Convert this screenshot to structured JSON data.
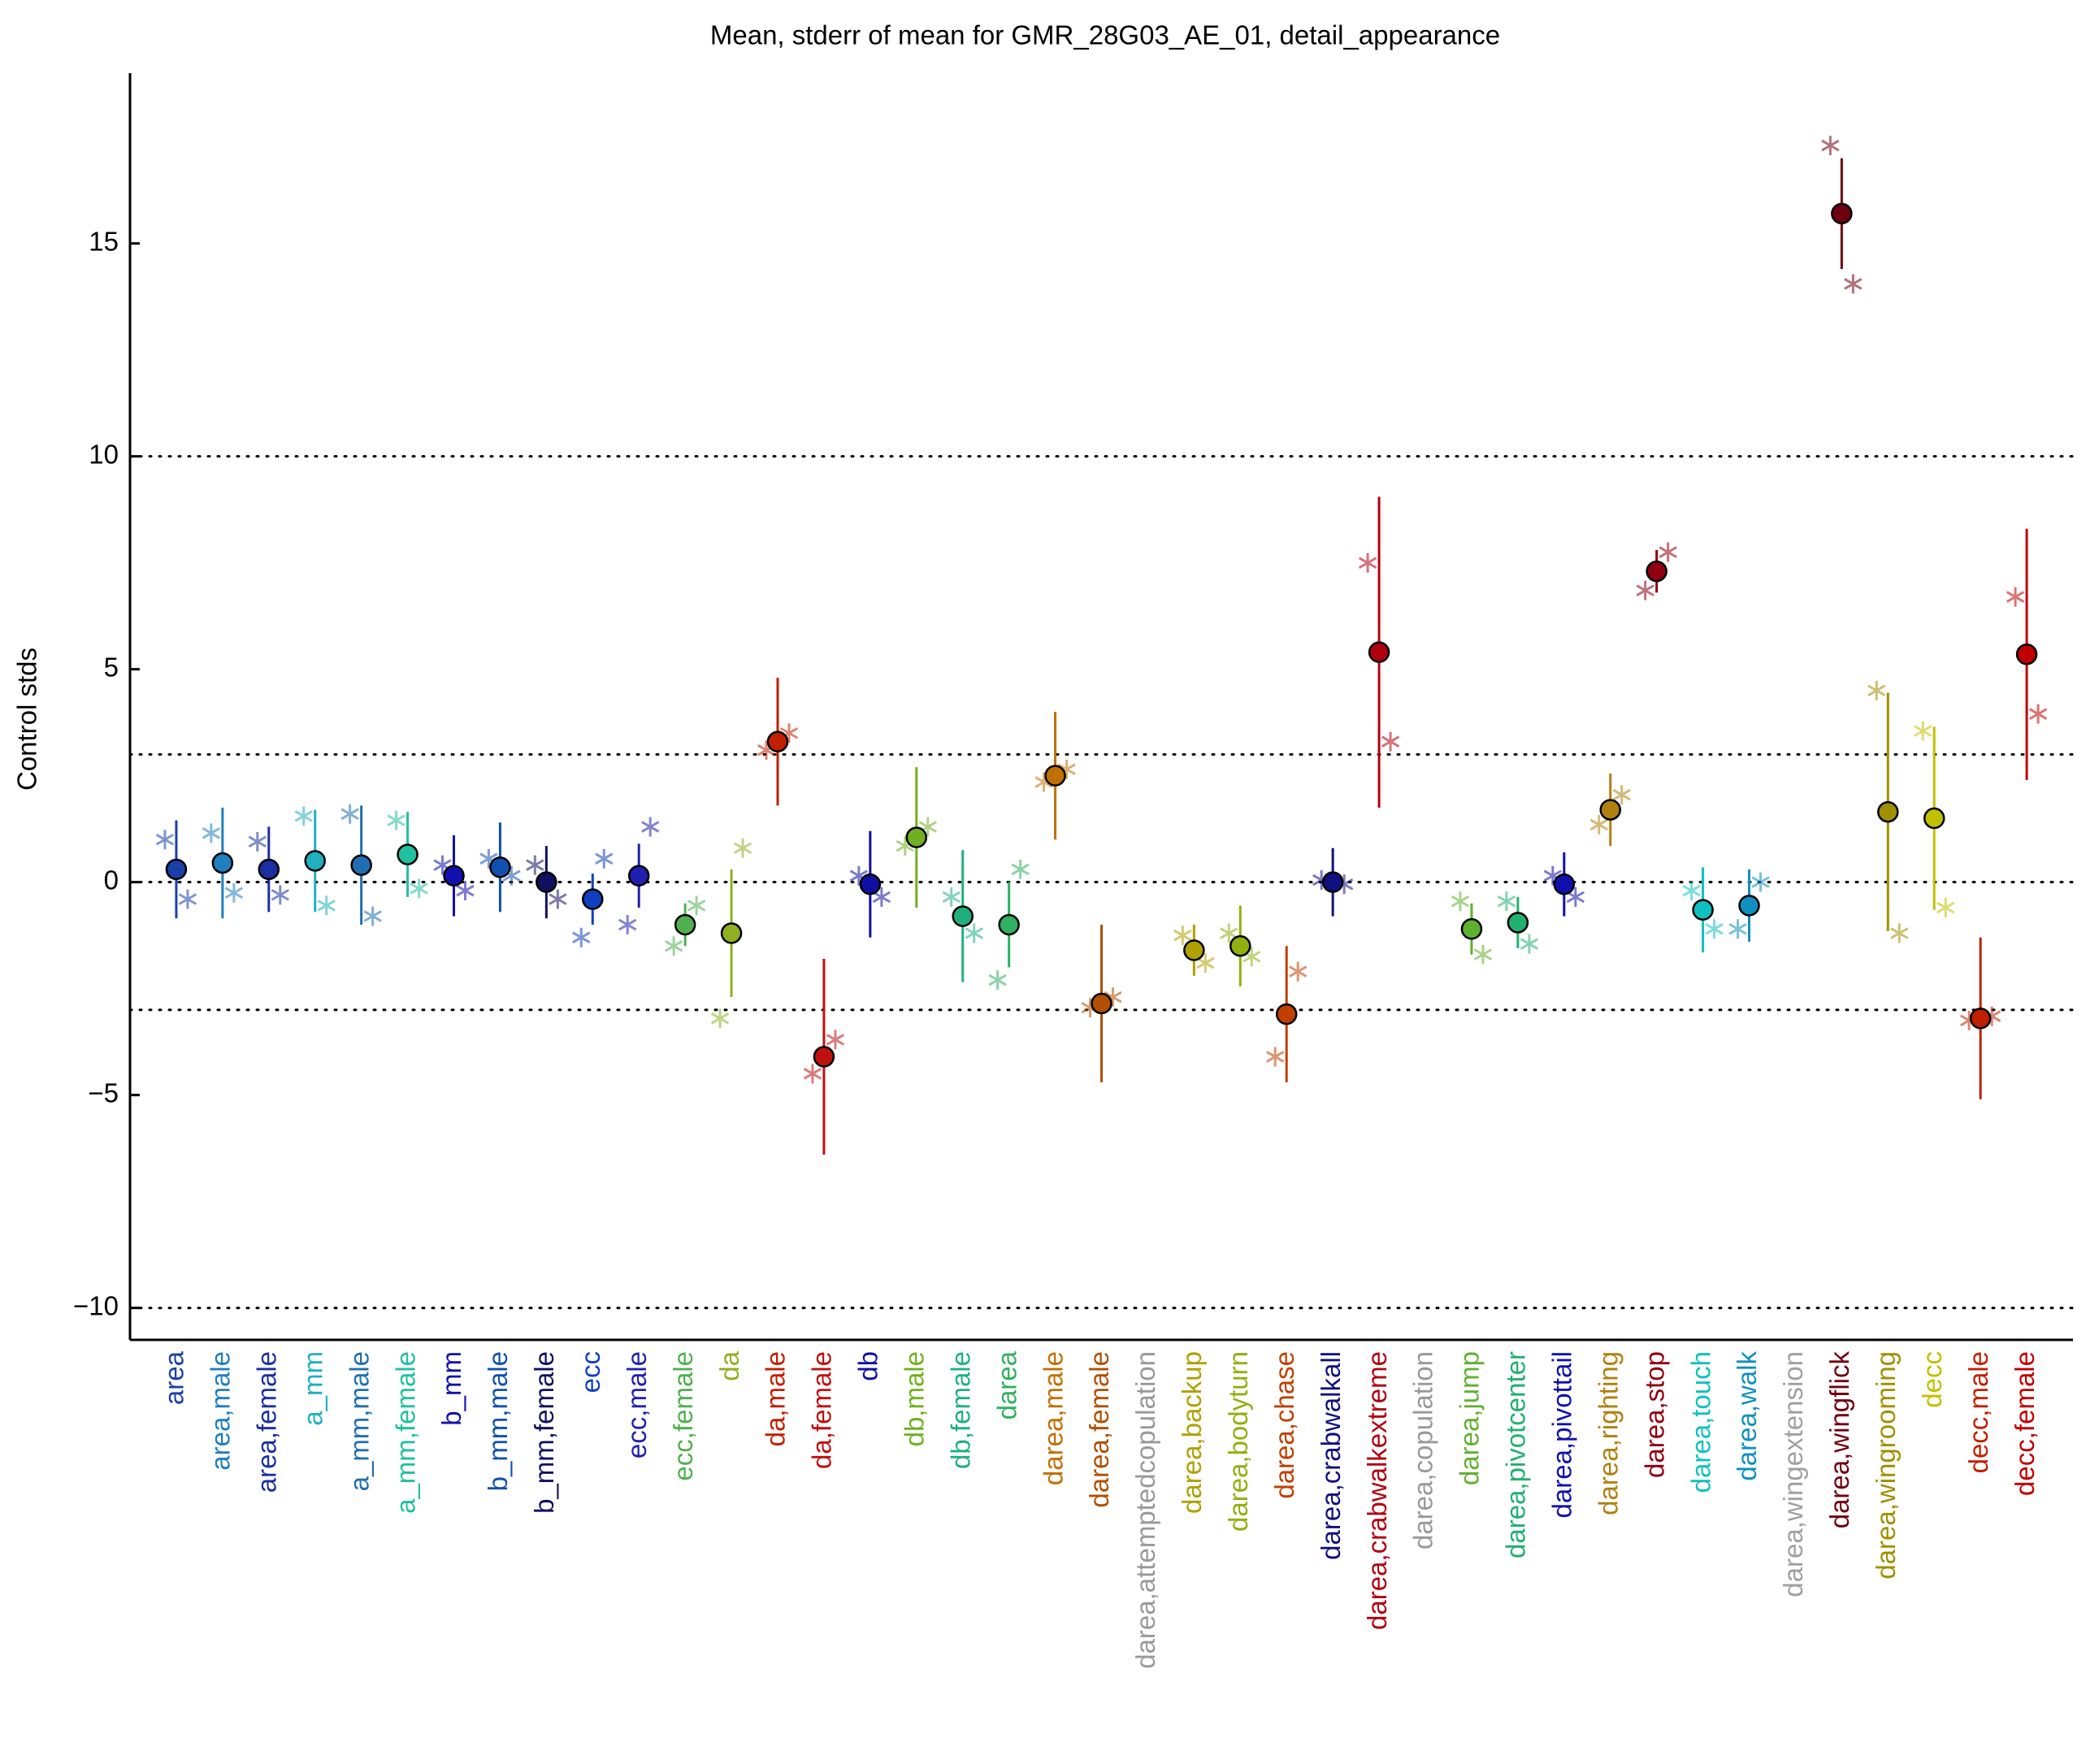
{
  "chart_data": {
    "type": "errorbar",
    "title": "Mean, stderr of mean for GMR_28G03_AE_01, detail_appearance",
    "ylabel": "Control stds",
    "categories": [
      "area",
      "area,male",
      "area,female",
      "a_mm",
      "a_mm,male",
      "a_mm,female",
      "b_mm",
      "b_mm,male",
      "b_mm,female",
      "ecc",
      "ecc,male",
      "ecc,female",
      "da",
      "da,male",
      "da,female",
      "db",
      "db,male",
      "db,female",
      "darea",
      "darea,male",
      "darea,female",
      "darea,attemptedcopulation",
      "darea,backup",
      "darea,bodyturn",
      "darea,chase",
      "darea,crabwalkall",
      "darea,crabwalkextreme",
      "darea,copulation",
      "darea,jump",
      "darea,pivotcenter",
      "darea,pivottail",
      "darea,righting",
      "darea,stop",
      "darea,touch",
      "darea,walk",
      "darea,wingextension",
      "darea,wingflick",
      "darea,wingrooming",
      "decc",
      "decc,male",
      "decc,female"
    ],
    "values": [
      0.3,
      0.45,
      0.3,
      0.5,
      0.4,
      0.65,
      0.15,
      0.35,
      0.0,
      -0.4,
      0.15,
      -1.0,
      -1.2,
      3.3,
      -4.1,
      -0.05,
      1.05,
      -0.8,
      -1.0,
      2.5,
      -2.85,
      null,
      -1.6,
      -1.5,
      -3.1,
      0.0,
      5.4,
      null,
      -1.1,
      -0.95,
      -0.05,
      1.7,
      7.3,
      -0.65,
      -0.55,
      null,
      15.7,
      1.65,
      1.5,
      -3.2,
      5.35
    ],
    "errors": [
      1.15,
      1.3,
      1.0,
      1.2,
      1.4,
      1.0,
      0.95,
      1.05,
      0.85,
      0.6,
      0.75,
      0.5,
      1.5,
      1.5,
      2.3,
      1.25,
      1.65,
      1.55,
      1.0,
      1.5,
      1.85,
      null,
      0.6,
      0.95,
      1.6,
      0.8,
      3.65,
      null,
      0.6,
      0.6,
      0.75,
      0.85,
      0.5,
      1.0,
      0.85,
      null,
      1.3,
      2.8,
      2.15,
      1.9,
      2.95
    ],
    "markers_left": [
      1.0,
      1.15,
      0.95,
      1.55,
      1.6,
      1.45,
      0.4,
      0.55,
      0.4,
      -1.3,
      -1.0,
      -1.5,
      -3.2,
      3.1,
      -4.5,
      0.15,
      0.85,
      -0.35,
      -2.3,
      2.35,
      -2.95,
      null,
      -1.25,
      -1.2,
      -4.1,
      0.05,
      7.5,
      null,
      -0.45,
      -0.45,
      0.15,
      1.35,
      6.85,
      -0.2,
      -1.1,
      null,
      17.3,
      4.5,
      3.55,
      -3.25,
      6.7
    ],
    "markers_right": [
      -0.4,
      -0.25,
      -0.3,
      -0.55,
      -0.8,
      -0.15,
      -0.2,
      0.15,
      -0.4,
      0.55,
      1.3,
      -0.55,
      0.8,
      3.5,
      -3.7,
      -0.35,
      1.3,
      -1.2,
      0.3,
      2.65,
      -2.7,
      null,
      -1.9,
      -1.75,
      -2.1,
      -0.05,
      3.3,
      null,
      -1.7,
      -1.45,
      -0.35,
      2.05,
      7.75,
      -1.1,
      0.0,
      null,
      14.05,
      -1.2,
      -0.6,
      -3.15,
      3.95
    ],
    "colors": [
      "#1a3fa8",
      "#1f7fbf",
      "#1a2fa0",
      "#20b0c0",
      "#1f6fb0",
      "#20c0a0",
      "#1010b0",
      "#1050b0",
      "#101060",
      "#1040c0",
      "#2020b0",
      "#50b050",
      "#90b020",
      "#c02000",
      "#c01010",
      "#1010a0",
      "#70b020",
      "#20b080",
      "#30b060",
      "#c07000",
      "#b05000",
      "#999999",
      "#b0a000",
      "#90b010",
      "#c04000",
      "#101080",
      "#b00010",
      "#999999",
      "#60b030",
      "#20b070",
      "#1010b0",
      "#b08010",
      "#900010",
      "#10c0c0",
      "#1090c0",
      "#a0a0a0",
      "#700010",
      "#a09000",
      "#c0c000",
      "#c02000",
      "#c00000"
    ],
    "ylim": [
      -10.75,
      19
    ],
    "yticks": [
      {
        "value": -10,
        "label": "−10"
      },
      {
        "value": -5,
        "label": "−5"
      },
      0,
      5,
      10,
      15
    ],
    "reference_lines": [
      -10,
      -3,
      0,
      3,
      10
    ]
  }
}
